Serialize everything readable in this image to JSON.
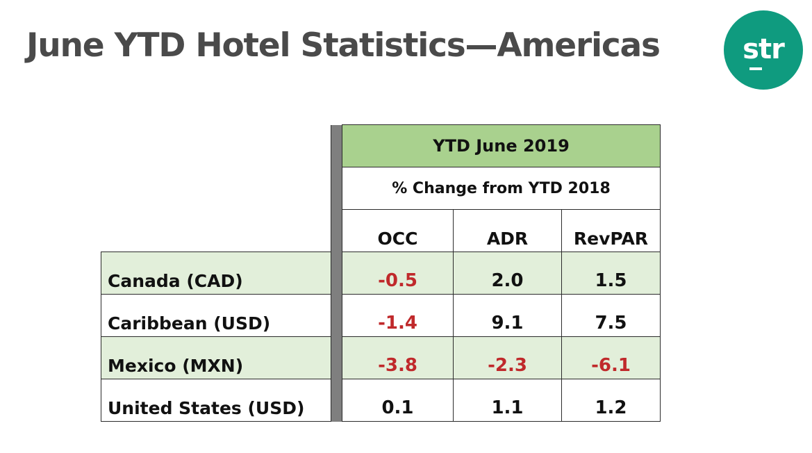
{
  "title": "June YTD Hotel Statistics—Americas",
  "logo": {
    "text": "str",
    "icon": "str-logo",
    "color": "#0f9b7f"
  },
  "table": {
    "period_header": "YTD June 2019",
    "sub_header": "% Change from YTD 2018",
    "columns": [
      "OCC",
      "ADR",
      "RevPAR"
    ],
    "rows": [
      {
        "label": "Canada (CAD)",
        "values": [
          "-0.5",
          "2.0",
          "1.5"
        ]
      },
      {
        "label": "Caribbean (USD)",
        "values": [
          "-1.4",
          "9.1",
          "7.5"
        ]
      },
      {
        "label": "Mexico (MXN)",
        "values": [
          "-3.8",
          "-2.3",
          "-6.1"
        ]
      },
      {
        "label": "United States (USD)",
        "values": [
          "0.1",
          "1.1",
          "1.2"
        ]
      }
    ]
  },
  "colors": {
    "header_green": "#a9d18e",
    "row_shade": "#e2efda",
    "negative_red": "#c0292b",
    "title_gray": "#4a4a4a"
  }
}
